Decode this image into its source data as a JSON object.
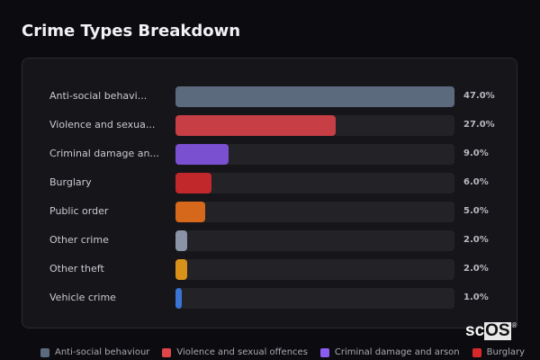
{
  "header": {
    "title": "Crime Types Breakdown"
  },
  "rows": [
    {
      "label": "Anti-social behavi...",
      "value_label": "47.0%",
      "value": 47.0,
      "color": "#5b6a7c"
    },
    {
      "label": "Violence and sexua...",
      "value_label": "27.0%",
      "value": 27.0,
      "color": "#c73e44"
    },
    {
      "label": "Criminal damage an...",
      "value_label": "9.0%",
      "value": 9.0,
      "color": "#7a4fd0"
    },
    {
      "label": "Burglary",
      "value_label": "6.0%",
      "value": 6.0,
      "color": "#c0282c"
    },
    {
      "label": "Public order",
      "value_label": "5.0%",
      "value": 5.0,
      "color": "#d6681c"
    },
    {
      "label": "Other crime",
      "value_label": "2.0%",
      "value": 2.0,
      "color": "#8a94a6"
    },
    {
      "label": "Other theft",
      "value_label": "2.0%",
      "value": 2.0,
      "color": "#d8921a"
    },
    {
      "label": "Vehicle crime",
      "value_label": "1.0%",
      "value": 1.0,
      "color": "#3a74d4"
    }
  ],
  "legend": [
    {
      "label": "Anti-social behaviour",
      "color": "#5b6a7c"
    },
    {
      "label": "Violence and sexual offences",
      "color": "#e0454a"
    },
    {
      "label": "Criminal damage and arson",
      "color": "#8a5cf0"
    },
    {
      "label": "Burglary",
      "color": "#d8282c"
    }
  ],
  "logo": {
    "prefix": "sc",
    "highlight": "OS",
    "mark": "®"
  },
  "chart_data": {
    "type": "bar",
    "orientation": "horizontal",
    "title": "Crime Types Breakdown",
    "categories": [
      "Anti-social behaviour",
      "Violence and sexual offences",
      "Criminal damage and arson",
      "Burglary",
      "Public order",
      "Other crime",
      "Other theft",
      "Vehicle crime"
    ],
    "display_labels": [
      "Anti-social behavi...",
      "Violence and sexua...",
      "Criminal damage an...",
      "Burglary",
      "Public order",
      "Other crime",
      "Other theft",
      "Vehicle crime"
    ],
    "values": [
      47.0,
      27.0,
      9.0,
      6.0,
      5.0,
      2.0,
      2.0,
      1.0
    ],
    "value_labels": [
      "47.0%",
      "27.0%",
      "9.0%",
      "6.0%",
      "5.0%",
      "2.0%",
      "2.0%",
      "1.0%"
    ],
    "colors": [
      "#5b6a7c",
      "#c73e44",
      "#7a4fd0",
      "#c0282c",
      "#d6681c",
      "#8a94a6",
      "#d8921a",
      "#3a74d4"
    ],
    "xlabel": "",
    "ylabel": "",
    "xlim": [
      0,
      47
    ],
    "unit": "%",
    "grid": false,
    "legend": {
      "position": "bottom",
      "entries": [
        "Anti-social behaviour",
        "Violence and sexual offences",
        "Criminal damage and arson",
        "Burglary"
      ]
    }
  }
}
